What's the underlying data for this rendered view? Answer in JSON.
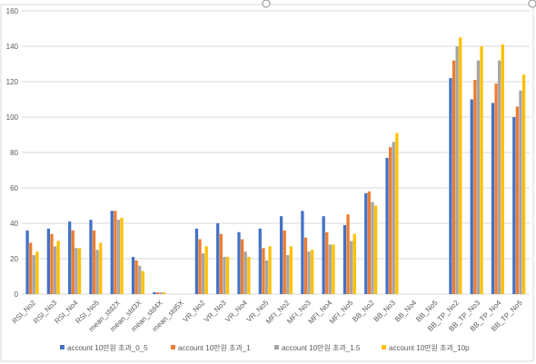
{
  "chart_data": {
    "type": "bar",
    "title": "",
    "xlabel": "",
    "ylabel": "",
    "ylim": [
      0,
      160
    ],
    "yticks": [
      0,
      20,
      40,
      60,
      80,
      100,
      120,
      140,
      160
    ],
    "grid": true,
    "legend_position": "bottom",
    "categories": [
      "RSI_No2",
      "RSI_No3",
      "RSI_No4",
      "RSI_No5",
      "mean_std2X",
      "mean_std3X",
      "mean_std4X",
      "mean_std5X",
      "VR_No2",
      "VR_No3",
      "VR_No4",
      "VR_No5",
      "MFI_No2",
      "MFI_No3",
      "MFI_No4",
      "MFI_No5",
      "BB_No2",
      "BB_No3",
      "BB_No4",
      "BB_No5",
      "BB_TP_No2",
      "BB_TP_No3",
      "BB_TP_No4",
      "BB_TP_No5"
    ],
    "series": [
      {
        "name": "account 10만원 초과_0_5",
        "color": "#4472C4",
        "values": [
          36,
          37,
          41,
          42,
          47,
          21,
          1,
          0,
          37,
          40,
          35,
          37,
          44,
          47,
          44,
          39,
          57,
          77,
          0,
          0,
          122,
          110,
          108,
          100
        ]
      },
      {
        "name": "account 10만원 초과_1",
        "color": "#ED7D31",
        "values": [
          29,
          34,
          36,
          36,
          47,
          19,
          1,
          0,
          31,
          34,
          31,
          26,
          36,
          32,
          35,
          45,
          58,
          83,
          0,
          0,
          132,
          121,
          119,
          106
        ]
      },
      {
        "name": "account 10만원 초과_1.5",
        "color": "#A5A5A5",
        "values": [
          22,
          27,
          26,
          25,
          42,
          16,
          1,
          0,
          23,
          21,
          24,
          19,
          22,
          24,
          28,
          30,
          52,
          86,
          0,
          0,
          140,
          132,
          132,
          115
        ]
      },
      {
        "name": "account 10만원 초과_10p",
        "color": "#FFC000",
        "values": [
          24,
          30,
          26,
          29,
          43,
          13,
          1,
          0,
          27,
          21,
          21,
          27,
          27,
          25,
          28,
          34,
          50,
          91,
          0,
          0,
          145,
          140,
          141,
          124
        ]
      }
    ]
  }
}
